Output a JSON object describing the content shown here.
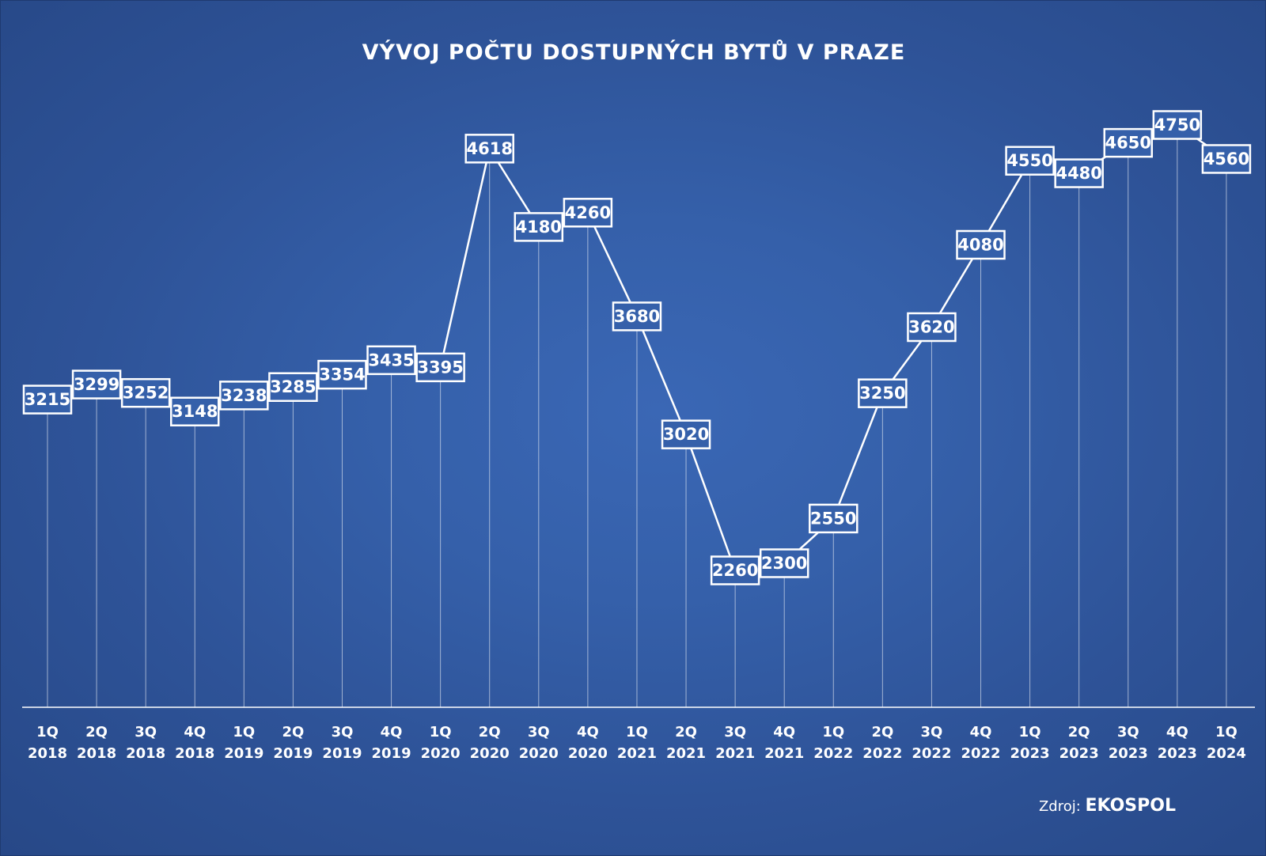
{
  "chart_data": {
    "type": "line",
    "title": "VÝVOJ POČTU DOSTUPNÝCH BYTŮ V PRAZE",
    "categories": [
      [
        "1Q",
        "2018"
      ],
      [
        "2Q",
        "2018"
      ],
      [
        "3Q",
        "2018"
      ],
      [
        "4Q",
        "2018"
      ],
      [
        "1Q",
        "2019"
      ],
      [
        "2Q",
        "2019"
      ],
      [
        "3Q",
        "2019"
      ],
      [
        "4Q",
        "2019"
      ],
      [
        "1Q",
        "2020"
      ],
      [
        "2Q",
        "2020"
      ],
      [
        "3Q",
        "2020"
      ],
      [
        "4Q",
        "2020"
      ],
      [
        "1Q",
        "2021"
      ],
      [
        "2Q",
        "2021"
      ],
      [
        "3Q",
        "2021"
      ],
      [
        "4Q",
        "2021"
      ],
      [
        "1Q",
        "2022"
      ],
      [
        "2Q",
        "2022"
      ],
      [
        "3Q",
        "2022"
      ],
      [
        "4Q",
        "2022"
      ],
      [
        "1Q",
        "2023"
      ],
      [
        "2Q",
        "2023"
      ],
      [
        "3Q",
        "2023"
      ],
      [
        "4Q",
        "2023"
      ],
      [
        "1Q",
        "2024"
      ]
    ],
    "values": [
      3215,
      3299,
      3252,
      3148,
      3238,
      3285,
      3354,
      3435,
      3395,
      4618,
      4180,
      4260,
      3680,
      3020,
      2260,
      2300,
      2550,
      3250,
      3620,
      4080,
      4550,
      4480,
      4650,
      4750,
      4560
    ],
    "data_labels": true,
    "drop_lines": true,
    "xlabel": "",
    "ylabel": "",
    "ylim": [
      0,
      5000
    ],
    "grid": false,
    "colors": {
      "background": "#3560aa",
      "line": "#ffffff",
      "label_box": "#3560aa",
      "text": "#ffffff"
    }
  },
  "source": {
    "prefix": "Zdroj:",
    "name": "EKOSPOL"
  }
}
